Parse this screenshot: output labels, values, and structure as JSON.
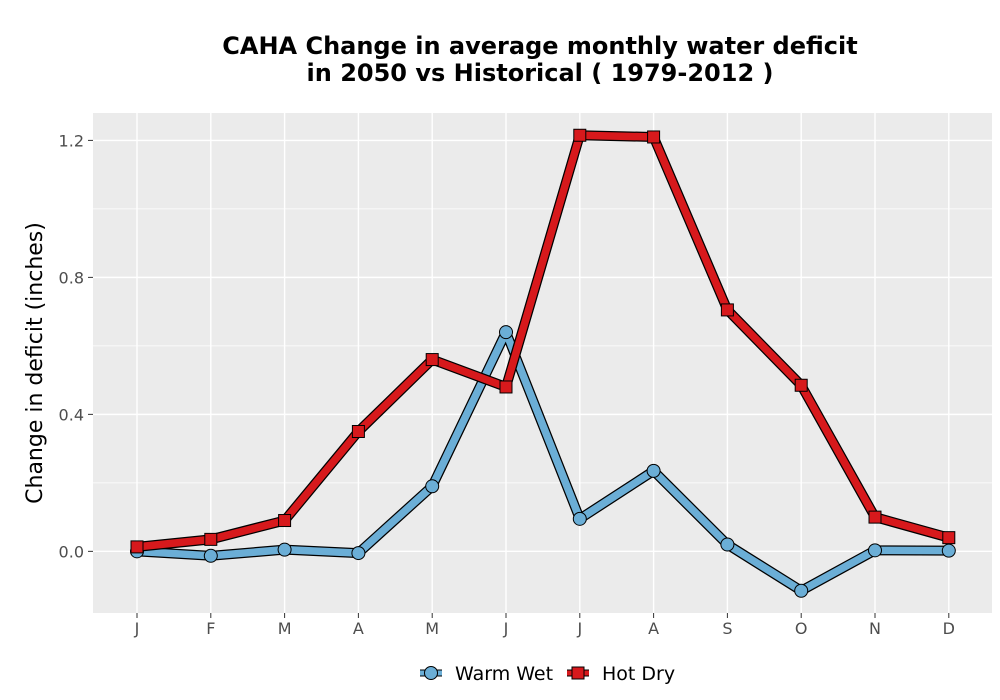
{
  "title_line1": "CAHA  Change in average monthly water deficit",
  "title_line2": "in 2050 vs Historical ( 1979-2012 )",
  "colors": {
    "warm_wet": "#6baed6",
    "hot_dry": "#d7191c",
    "panel": "#ebebeb",
    "grid": "#ffffff"
  },
  "chart_data": {
    "type": "line",
    "categories": [
      "J",
      "F",
      "M",
      "A",
      "M",
      "J",
      "J",
      "A",
      "S",
      "O",
      "N",
      "D"
    ],
    "ylabel": "Change in deficit (inches)",
    "xlabel": "",
    "ylim": [
      -0.18,
      1.28
    ],
    "yticks": [
      0.0,
      0.4,
      0.8,
      1.2
    ],
    "ytick_labels": [
      "0.0",
      "0.4",
      "0.8",
      "1.2"
    ],
    "grid": true,
    "legend_position": "bottom",
    "series": [
      {
        "name": "Warm Wet",
        "marker": "circle",
        "color": "#6baed6",
        "values": [
          0.0,
          -0.013,
          0.005,
          -0.005,
          0.19,
          0.64,
          0.095,
          0.235,
          0.02,
          -0.115,
          0.003,
          0.002
        ]
      },
      {
        "name": "Hot Dry",
        "marker": "square",
        "color": "#d7191c",
        "values": [
          0.013,
          0.035,
          0.09,
          0.35,
          0.56,
          0.48,
          1.215,
          1.21,
          0.705,
          0.485,
          0.1,
          0.04
        ]
      }
    ]
  }
}
